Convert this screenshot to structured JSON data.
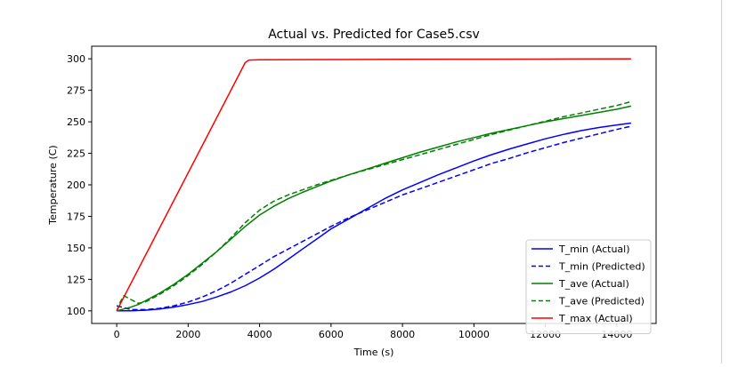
{
  "chart_data": {
    "type": "line",
    "title": "Actual vs. Predicted for Case5.csv",
    "xlabel": "Time (s)",
    "ylabel": "Temperature (C)",
    "xlim": [
      -700,
      15100
    ],
    "ylim": [
      90,
      310
    ],
    "xticks": [
      0,
      2000,
      4000,
      6000,
      8000,
      10000,
      12000,
      14000
    ],
    "yticks": [
      100,
      125,
      150,
      175,
      200,
      225,
      250,
      275,
      300
    ],
    "grid": false,
    "legend_position": "lower-right",
    "series": [
      {
        "name": "T_min (Actual)",
        "color": "#0000ff",
        "style": "solid",
        "x": [
          0,
          400,
          800,
          1200,
          1600,
          2000,
          2400,
          2800,
          3200,
          3600,
          4000,
          4400,
          4800,
          5200,
          5600,
          6000,
          6500,
          7000,
          7500,
          8000,
          8500,
          9000,
          9500,
          10000,
          10500,
          11000,
          11500,
          12000,
          12500,
          13000,
          13500,
          14000,
          14400
        ],
        "y": [
          100,
          100,
          100.5,
          101.5,
          103,
          105,
          107.5,
          111,
          115,
          120,
          126,
          133,
          141,
          149,
          157,
          165,
          173,
          181,
          189,
          196,
          202,
          208,
          213.5,
          219,
          224,
          228.5,
          232.5,
          236.5,
          240,
          243,
          245.5,
          247.5,
          249
        ]
      },
      {
        "name": "T_min (Predicted)",
        "color": "#0000ff",
        "style": "dashed",
        "x": [
          0,
          400,
          800,
          1200,
          1600,
          2000,
          2400,
          2800,
          3200,
          3600,
          4000,
          4400,
          4800,
          5200,
          5600,
          6000,
          6500,
          7000,
          7500,
          8000,
          8500,
          9000,
          9500,
          10000,
          10500,
          11000,
          11500,
          12000,
          12500,
          13000,
          13500,
          14000,
          14400
        ],
        "y": [
          104,
          101,
          101,
          102,
          104,
          107,
          111,
          116,
          122,
          129,
          136,
          143,
          149,
          155,
          161,
          167,
          174,
          180,
          186,
          192,
          197,
          202,
          207,
          212,
          217,
          221,
          225.5,
          229.5,
          233.5,
          237,
          240.5,
          244,
          246.5
        ]
      },
      {
        "name": "T_ave (Actual)",
        "color": "#008000",
        "style": "solid",
        "x": [
          0,
          200,
          400,
          600,
          800,
          1200,
          1600,
          2000,
          2400,
          2800,
          3200,
          3600,
          4000,
          4400,
          4800,
          5200,
          5600,
          6000,
          6500,
          7000,
          7500,
          8000,
          8500,
          9000,
          9500,
          10000,
          10500,
          11000,
          11500,
          12000,
          12500,
          13000,
          13500,
          14000,
          14400
        ],
        "y": [
          100,
          101.5,
          103,
          105,
          108,
          114,
          121,
          129,
          138,
          147,
          157,
          167,
          176,
          183,
          189,
          194,
          198.5,
          203,
          208,
          212.5,
          217,
          221.5,
          226,
          230,
          234,
          237.5,
          241,
          244,
          247,
          250,
          252.5,
          255,
          257.5,
          260,
          262.5
        ]
      },
      {
        "name": "T_ave (Predicted)",
        "color": "#008000",
        "style": "dashed",
        "x": [
          0,
          100,
          200,
          400,
          600,
          800,
          1200,
          1600,
          2000,
          2400,
          2800,
          3200,
          3600,
          4000,
          4400,
          4800,
          5200,
          5600,
          6000,
          6500,
          7000,
          7500,
          8000,
          8500,
          9000,
          9500,
          10000,
          10500,
          11000,
          11500,
          12000,
          12500,
          13000,
          13500,
          14000,
          14400
        ],
        "y": [
          100,
          107,
          112,
          109,
          106,
          107,
          113,
          120,
          128,
          137,
          147,
          158,
          170,
          180,
          187,
          192,
          196,
          200,
          203.5,
          208,
          212,
          216,
          220,
          224,
          228,
          232,
          236,
          240,
          243.5,
          247,
          250.5,
          254,
          257,
          260,
          263,
          266
        ]
      },
      {
        "name": "T_max (Actual)",
        "color": "#ff0000",
        "style": "solid",
        "x": [
          0,
          3600,
          3700,
          4000,
          6000,
          8000,
          10000,
          12000,
          14400
        ],
        "y": [
          100,
          297,
          299,
          299.2,
          299.4,
          299.6,
          299.7,
          299.8,
          300
        ]
      }
    ]
  }
}
